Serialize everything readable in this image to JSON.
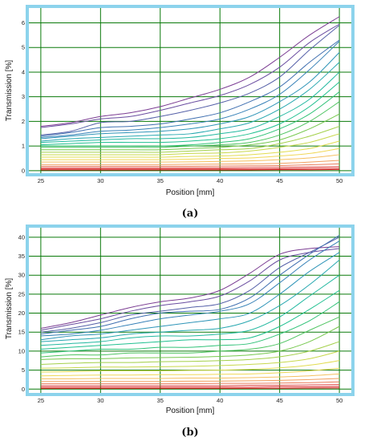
{
  "chart_data": [
    {
      "type": "line",
      "panel_label": "(a)",
      "xlabel": "Position [mm]",
      "ylabel": "Transmission [%]",
      "xlim": [
        24,
        51
      ],
      "ylim": [
        -0.1,
        6.6
      ],
      "xticks": [
        25,
        30,
        35,
        40,
        45,
        50
      ],
      "yticks": [
        0,
        1,
        2,
        3,
        4,
        5,
        6
      ],
      "grid": true,
      "frame_color": "#8cd3ec",
      "grid_color": "#0a7a0a",
      "x": [
        25,
        27.5,
        30,
        32.5,
        35,
        37.5,
        40,
        42.5,
        45,
        47.5,
        50
      ],
      "series": [
        {
          "color": "#7b3d93",
          "values": [
            1.8,
            1.95,
            2.2,
            2.35,
            2.6,
            2.95,
            3.3,
            3.8,
            4.6,
            5.5,
            6.25
          ]
        },
        {
          "color": "#6a4da0",
          "values": [
            1.75,
            1.9,
            2.1,
            2.2,
            2.45,
            2.75,
            3.05,
            3.5,
            4.2,
            5.2,
            5.95
          ]
        },
        {
          "color": "#5560a8",
          "values": [
            1.45,
            1.6,
            1.95,
            2.0,
            2.2,
            2.45,
            2.75,
            3.15,
            3.8,
            4.9,
            5.9
          ]
        },
        {
          "color": "#3f6fb0",
          "values": [
            1.4,
            1.55,
            1.75,
            1.8,
            1.9,
            2.1,
            2.35,
            2.8,
            3.4,
            4.4,
            5.3
          ]
        },
        {
          "color": "#3882b8",
          "values": [
            1.35,
            1.45,
            1.6,
            1.65,
            1.75,
            1.9,
            2.1,
            2.5,
            3.1,
            4.1,
            5.25
          ]
        },
        {
          "color": "#2f95b8",
          "values": [
            1.3,
            1.4,
            1.5,
            1.55,
            1.6,
            1.7,
            1.9,
            2.2,
            2.8,
            3.6,
            4.8
          ]
        },
        {
          "color": "#28a8b0",
          "values": [
            1.2,
            1.3,
            1.35,
            1.4,
            1.45,
            1.5,
            1.7,
            1.95,
            2.5,
            3.3,
            4.4
          ]
        },
        {
          "color": "#22b8a0",
          "values": [
            1.15,
            1.2,
            1.25,
            1.3,
            1.3,
            1.35,
            1.5,
            1.7,
            2.2,
            2.9,
            4.0
          ]
        },
        {
          "color": "#20c090",
          "values": [
            1.05,
            1.1,
            1.15,
            1.15,
            1.15,
            1.2,
            1.3,
            1.5,
            1.9,
            2.6,
            3.6
          ]
        },
        {
          "color": "#30c278",
          "values": [
            1.0,
            1.0,
            1.0,
            1.0,
            1.0,
            1.05,
            1.15,
            1.3,
            1.7,
            2.3,
            3.2
          ]
        },
        {
          "color": "#4ec461",
          "values": [
            0.95,
            0.95,
            0.95,
            0.95,
            0.95,
            1.0,
            1.05,
            1.15,
            1.45,
            2.0,
            2.8
          ]
        },
        {
          "color": "#76c84e",
          "values": [
            0.85,
            0.85,
            0.85,
            0.85,
            0.85,
            0.9,
            0.95,
            1.05,
            1.25,
            1.7,
            2.3
          ]
        },
        {
          "color": "#a4d04a",
          "values": [
            0.75,
            0.75,
            0.75,
            0.75,
            0.75,
            0.8,
            0.85,
            0.9,
            1.1,
            1.4,
            1.8
          ]
        },
        {
          "color": "#c8d84c",
          "values": [
            0.65,
            0.65,
            0.65,
            0.65,
            0.65,
            0.7,
            0.72,
            0.8,
            0.95,
            1.15,
            1.5
          ]
        },
        {
          "color": "#e2dc50",
          "values": [
            0.55,
            0.55,
            0.55,
            0.55,
            0.55,
            0.58,
            0.6,
            0.65,
            0.75,
            0.9,
            1.2
          ]
        },
        {
          "color": "#f0d858",
          "values": [
            0.45,
            0.45,
            0.45,
            0.45,
            0.45,
            0.47,
            0.5,
            0.52,
            0.6,
            0.7,
            0.9
          ]
        },
        {
          "color": "#f4c060",
          "values": [
            0.35,
            0.35,
            0.35,
            0.35,
            0.35,
            0.36,
            0.38,
            0.4,
            0.45,
            0.52,
            0.65
          ]
        },
        {
          "color": "#f0a060",
          "values": [
            0.25,
            0.25,
            0.25,
            0.25,
            0.25,
            0.26,
            0.27,
            0.28,
            0.3,
            0.35,
            0.42
          ]
        },
        {
          "color": "#e87a5a",
          "values": [
            0.18,
            0.18,
            0.18,
            0.18,
            0.18,
            0.18,
            0.19,
            0.2,
            0.21,
            0.24,
            0.28
          ]
        },
        {
          "color": "#e04a48",
          "values": [
            0.12,
            0.12,
            0.12,
            0.12,
            0.12,
            0.12,
            0.12,
            0.13,
            0.14,
            0.15,
            0.17
          ]
        },
        {
          "color": "#d82828",
          "values": [
            0.07,
            0.07,
            0.07,
            0.07,
            0.07,
            0.07,
            0.07,
            0.07,
            0.08,
            0.09,
            0.1
          ]
        },
        {
          "color": "#cc1010",
          "values": [
            0.03,
            0.03,
            0.03,
            0.03,
            0.03,
            0.03,
            0.03,
            0.03,
            0.04,
            0.04,
            0.05
          ]
        }
      ]
    },
    {
      "type": "line",
      "panel_label": "(b)",
      "xlabel": "Position [mm]",
      "ylabel": "Transmission [%]",
      "xlim": [
        24,
        51
      ],
      "ylim": [
        -1,
        42.5
      ],
      "xticks": [
        25,
        30,
        35,
        40,
        45,
        50
      ],
      "yticks": [
        0,
        5,
        10,
        15,
        20,
        25,
        30,
        35,
        40
      ],
      "grid": true,
      "frame_color": "#8cd3ec",
      "grid_color": "#0a7a0a",
      "x": [
        25,
        27.5,
        30,
        32.5,
        35,
        37.5,
        40,
        42.5,
        45,
        47.5,
        50
      ],
      "series": [
        {
          "color": "#7b3d93",
          "values": [
            16.0,
            17.5,
            19.5,
            21.5,
            23.0,
            24.0,
            26.0,
            30.5,
            35.5,
            37.0,
            37.5
          ]
        },
        {
          "color": "#6a4da0",
          "values": [
            15.5,
            17.0,
            18.5,
            20.5,
            22.0,
            23.0,
            24.5,
            28.5,
            34.0,
            36.0,
            37.0
          ]
        },
        {
          "color": "#5560a8",
          "values": [
            15.0,
            16.0,
            17.5,
            19.5,
            20.5,
            21.5,
            22.5,
            26.0,
            32.0,
            36.0,
            40.0
          ]
        },
        {
          "color": "#3f6fb0",
          "values": [
            14.5,
            15.5,
            16.5,
            18.5,
            20.0,
            20.5,
            21.0,
            24.0,
            30.0,
            35.5,
            40.5
          ]
        },
        {
          "color": "#3882b8",
          "values": [
            14.0,
            14.5,
            15.5,
            17.0,
            18.5,
            19.5,
            20.5,
            22.5,
            28.0,
            34.0,
            39.0
          ]
        },
        {
          "color": "#2f95b8",
          "values": [
            13.0,
            14.0,
            14.5,
            15.5,
            16.5,
            17.5,
            18.5,
            20.0,
            25.0,
            31.0,
            36.0
          ]
        },
        {
          "color": "#28a8b0",
          "values": [
            12.5,
            13.0,
            13.5,
            14.5,
            15.0,
            15.5,
            16.0,
            18.0,
            22.0,
            27.5,
            34.0
          ]
        },
        {
          "color": "#22b8a0",
          "values": [
            11.5,
            12.0,
            12.5,
            13.5,
            14.0,
            14.0,
            14.5,
            15.5,
            19.0,
            24.5,
            30.0
          ]
        },
        {
          "color": "#20c090",
          "values": [
            10.5,
            11.0,
            11.5,
            12.0,
            12.5,
            13.0,
            13.0,
            13.5,
            16.5,
            21.0,
            26.0
          ]
        },
        {
          "color": "#30c278",
          "values": [
            9.5,
            10.0,
            10.5,
            10.5,
            11.0,
            11.0,
            11.5,
            12.0,
            14.5,
            18.0,
            23.0
          ]
        },
        {
          "color": "#4ec461",
          "values": [
            8.5,
            9.0,
            9.0,
            9.5,
            9.5,
            9.5,
            10.0,
            10.5,
            12.0,
            15.5,
            19.0
          ]
        },
        {
          "color": "#76c84e",
          "values": [
            7.8,
            8.0,
            8.0,
            8.2,
            8.3,
            8.4,
            8.6,
            9.0,
            10.0,
            12.5,
            16.5
          ]
        },
        {
          "color": "#a4d04a",
          "values": [
            6.5,
            6.8,
            7.0,
            7.0,
            7.2,
            7.3,
            7.5,
            7.8,
            8.5,
            10.0,
            12.5
          ]
        },
        {
          "color": "#c8d84c",
          "values": [
            5.5,
            5.6,
            5.8,
            5.8,
            5.9,
            6.0,
            6.2,
            6.5,
            7.0,
            8.0,
            10.0
          ]
        },
        {
          "color": "#e2dc50",
          "values": [
            4.5,
            4.6,
            4.8,
            4.8,
            4.8,
            4.9,
            5.0,
            5.2,
            5.6,
            6.3,
            7.5
          ]
        },
        {
          "color": "#f0d858",
          "values": [
            3.5,
            3.6,
            3.7,
            3.7,
            3.8,
            3.8,
            3.9,
            4.0,
            4.3,
            4.8,
            5.5
          ]
        },
        {
          "color": "#f4c060",
          "values": [
            2.7,
            2.7,
            2.8,
            2.8,
            2.8,
            2.9,
            2.9,
            3.0,
            3.2,
            3.5,
            4.0
          ]
        },
        {
          "color": "#f0a060",
          "values": [
            2.0,
            2.0,
            2.0,
            2.0,
            2.0,
            2.1,
            2.1,
            2.2,
            2.3,
            2.5,
            2.8
          ]
        },
        {
          "color": "#e87a5a",
          "values": [
            1.4,
            1.4,
            1.4,
            1.4,
            1.4,
            1.4,
            1.5,
            1.5,
            1.6,
            1.7,
            1.9
          ]
        },
        {
          "color": "#e04a48",
          "values": [
            0.9,
            0.9,
            0.9,
            0.9,
            0.9,
            0.9,
            0.9,
            1.0,
            1.0,
            1.1,
            1.2
          ]
        },
        {
          "color": "#d82828",
          "values": [
            0.5,
            0.5,
            0.5,
            0.5,
            0.5,
            0.5,
            0.5,
            0.5,
            0.6,
            0.6,
            0.7
          ]
        },
        {
          "color": "#cc1010",
          "values": [
            0.2,
            0.2,
            0.2,
            0.2,
            0.2,
            0.2,
            0.2,
            0.2,
            0.2,
            0.25,
            0.3
          ]
        }
      ]
    }
  ]
}
